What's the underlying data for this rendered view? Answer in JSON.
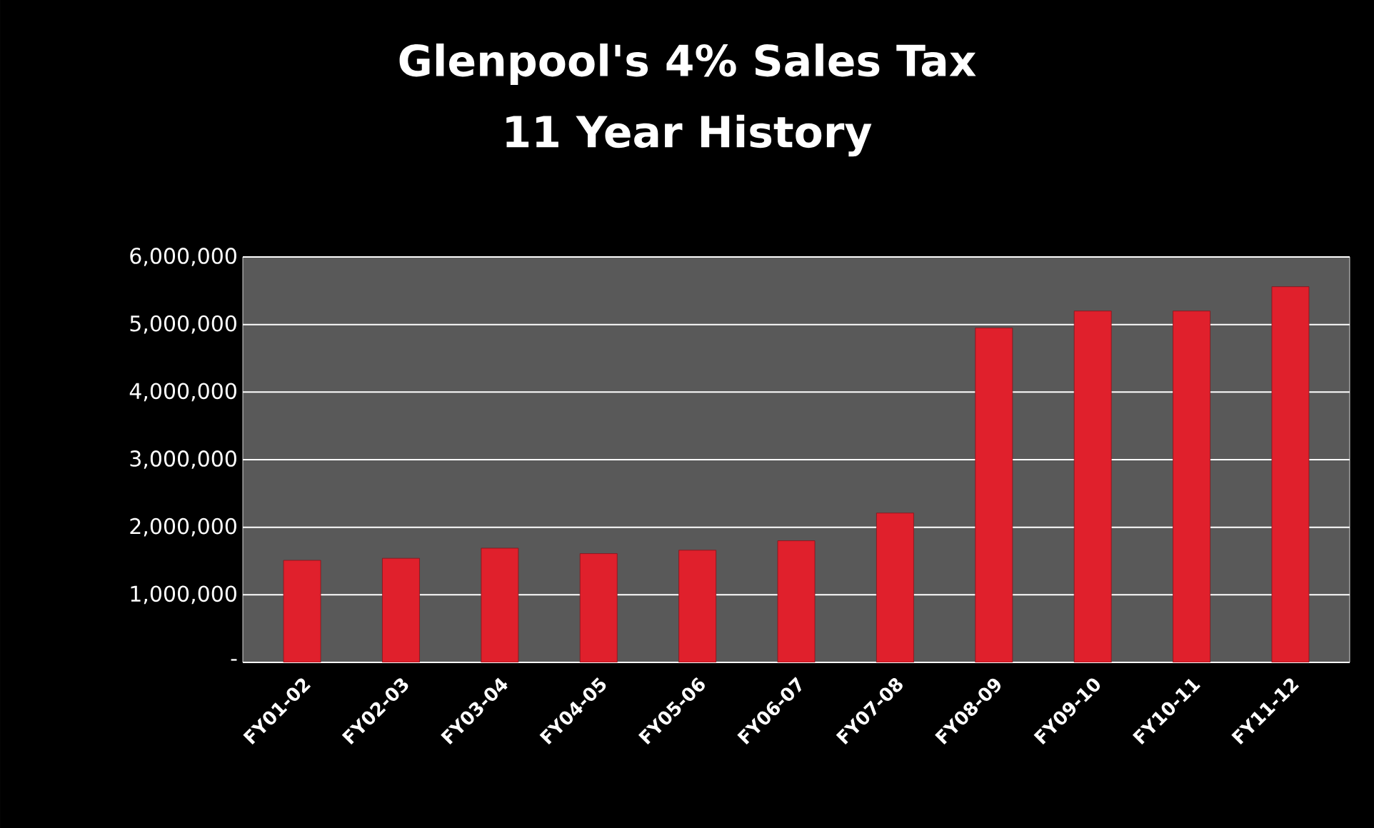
{
  "chart_data": {
    "type": "bar",
    "title": "Glenpool's 4% Sales Tax",
    "subtitle": "11 Year History",
    "categories": [
      "FY01-02",
      "FY02-03",
      "FY03-04",
      "FY04-05",
      "FY05-06",
      "FY06-07",
      "FY07-08",
      "FY08-09",
      "FY09-10",
      "FY10-11",
      "FY11-12"
    ],
    "values": [
      1510000,
      1540000,
      1690000,
      1610000,
      1660000,
      1800000,
      2210000,
      4950000,
      5200000,
      5200000,
      5560000
    ],
    "color": "#e0202c",
    "ylim": [
      0,
      6000000
    ],
    "yticks": [
      {
        "value": 0,
        "label": "-"
      },
      {
        "value": 1000000,
        "label": "1,000,000"
      },
      {
        "value": 2000000,
        "label": "2,000,000"
      },
      {
        "value": 3000000,
        "label": "3,000,000"
      },
      {
        "value": 4000000,
        "label": "4,000,000"
      },
      {
        "value": 5000000,
        "label": "5,000,000"
      },
      {
        "value": 6000000,
        "label": "6,000,000"
      }
    ],
    "grid": "y"
  }
}
